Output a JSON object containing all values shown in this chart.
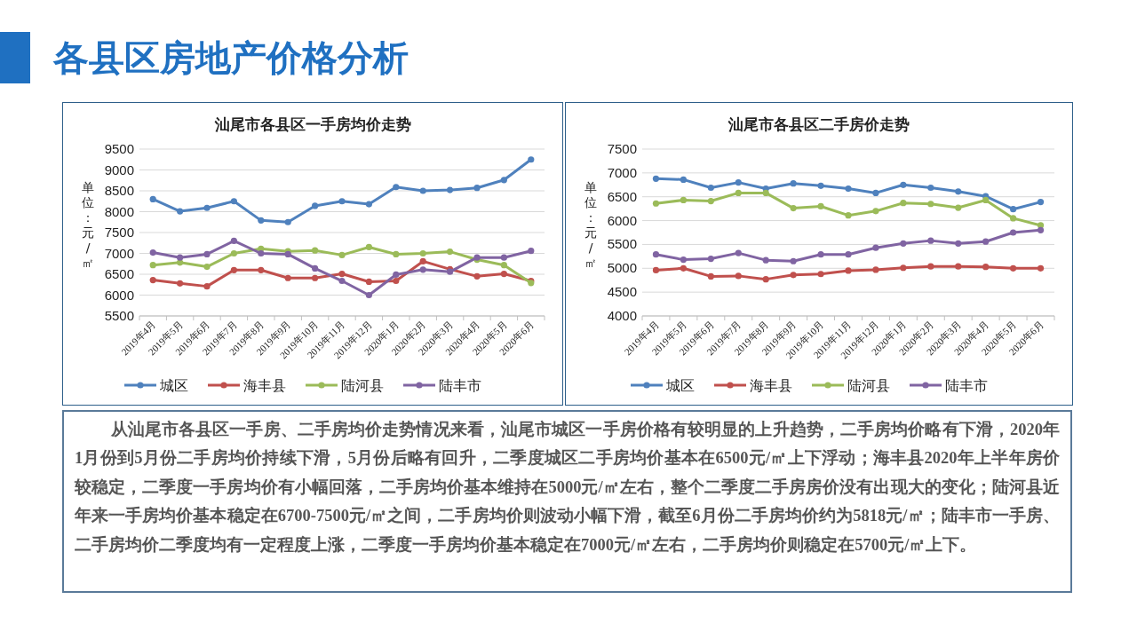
{
  "chart_data": [
    {
      "type": "line",
      "title": "汕尾市各县区一手房均价走势",
      "ylabel": "单位：元/㎡",
      "categories": [
        "2019年4月",
        "2019年5月",
        "2019年6月",
        "2019年7月",
        "2019年8月",
        "2019年9月",
        "2019年10月",
        "2019年11月",
        "2019年12月",
        "2020年1月",
        "2020年2月",
        "2020年3月",
        "2020年4月",
        "2020年5月",
        "2020年6月"
      ],
      "series": [
        {
          "name": "城区",
          "color": "#4f81bd",
          "values": [
            8300,
            8010,
            8090,
            8250,
            7790,
            7750,
            8140,
            8250,
            8180,
            8590,
            8500,
            8520,
            8570,
            8760,
            9250
          ]
        },
        {
          "name": "海丰县",
          "color": "#c0504d",
          "values": [
            6360,
            6280,
            6210,
            6600,
            6600,
            6410,
            6410,
            6510,
            6320,
            6340,
            6810,
            6620,
            6450,
            6510,
            6340
          ]
        },
        {
          "name": "陆河县",
          "color": "#9bbb59",
          "values": [
            6720,
            6780,
            6680,
            7000,
            7110,
            7050,
            7070,
            6960,
            7150,
            6980,
            7000,
            7040,
            6850,
            6720,
            6290
          ]
        },
        {
          "name": "陆丰市",
          "color": "#8064a2",
          "values": [
            7020,
            6900,
            6980,
            7300,
            7000,
            6980,
            6640,
            6340,
            6000,
            6490,
            6610,
            6560,
            6900,
            6900,
            7060
          ]
        }
      ],
      "ylim": [
        5500,
        9500
      ],
      "yticks": [
        5500,
        6000,
        6500,
        7000,
        7500,
        8000,
        8500,
        9000,
        9500
      ],
      "grid": "y",
      "legend": "bottom",
      "marker": "circle"
    },
    {
      "type": "line",
      "title": "汕尾市各县区二手房价走势",
      "ylabel": "单位：元/㎡",
      "categories": [
        "2019年4月",
        "2019年5月",
        "2019年6月",
        "2019年7月",
        "2019年8月",
        "2019年9月",
        "2019年10月",
        "2019年11月",
        "2019年12月",
        "2020年1月",
        "2020年2月",
        "2020年3月",
        "2020年4月",
        "2020年5月",
        "2020年6月"
      ],
      "series": [
        {
          "name": "城区",
          "color": "#4f81bd",
          "values": [
            6880,
            6860,
            6690,
            6800,
            6670,
            6780,
            6730,
            6670,
            6580,
            6750,
            6690,
            6610,
            6510,
            6240,
            6390
          ]
        },
        {
          "name": "海丰县",
          "color": "#c0504d",
          "values": [
            4960,
            5000,
            4830,
            4840,
            4770,
            4860,
            4880,
            4950,
            4970,
            5010,
            5040,
            5040,
            5030,
            5000,
            5000
          ]
        },
        {
          "name": "陆河县",
          "color": "#9bbb59",
          "values": [
            6360,
            6430,
            6410,
            6580,
            6580,
            6260,
            6300,
            6110,
            6200,
            6370,
            6350,
            6270,
            6430,
            6050,
            5900
          ]
        },
        {
          "name": "陆丰市",
          "color": "#8064a2",
          "values": [
            5290,
            5180,
            5200,
            5320,
            5170,
            5150,
            5290,
            5290,
            5430,
            5520,
            5580,
            5520,
            5560,
            5750,
            5800
          ]
        }
      ],
      "ylim": [
        4000,
        7500
      ],
      "yticks": [
        4000,
        4500,
        5000,
        5500,
        6000,
        6500,
        7000,
        7500
      ],
      "grid": "y",
      "legend": "bottom",
      "marker": "circle"
    },
    {
      "type": "other",
      "title": "各县区房地产价格分析",
      "annotations": [
        "从汕尾市各县区一手房、二手房均价走势情况来看，汕尾市城区一手房价格有较明显的上升趋势，二手房均价略有下滑，2020年1月份到5月份二手房均价持续下滑，5月份后略有回升，二季度城区二手房均价基本在6500元/㎡上下浮动；海丰县2020年上半年房价较稳定，二季度一手房均价有小幅回落，二手房均价基本维持在5000元/㎡左右，整个二季度二手房房价没有出现大的变化；陆河县近年来一手房均价基本稳定在6700-7500元/㎡之间，二手房均价则波动小幅下滑，截至6月份二手房均价约为5818元/㎡；陆丰市一手房、二手房均价二季度均有一定程度上涨，二季度一手房均价基本稳定在7000元/㎡左右，二手房均价则稳定在5700元/㎡上下。"
      ]
    }
  ]
}
